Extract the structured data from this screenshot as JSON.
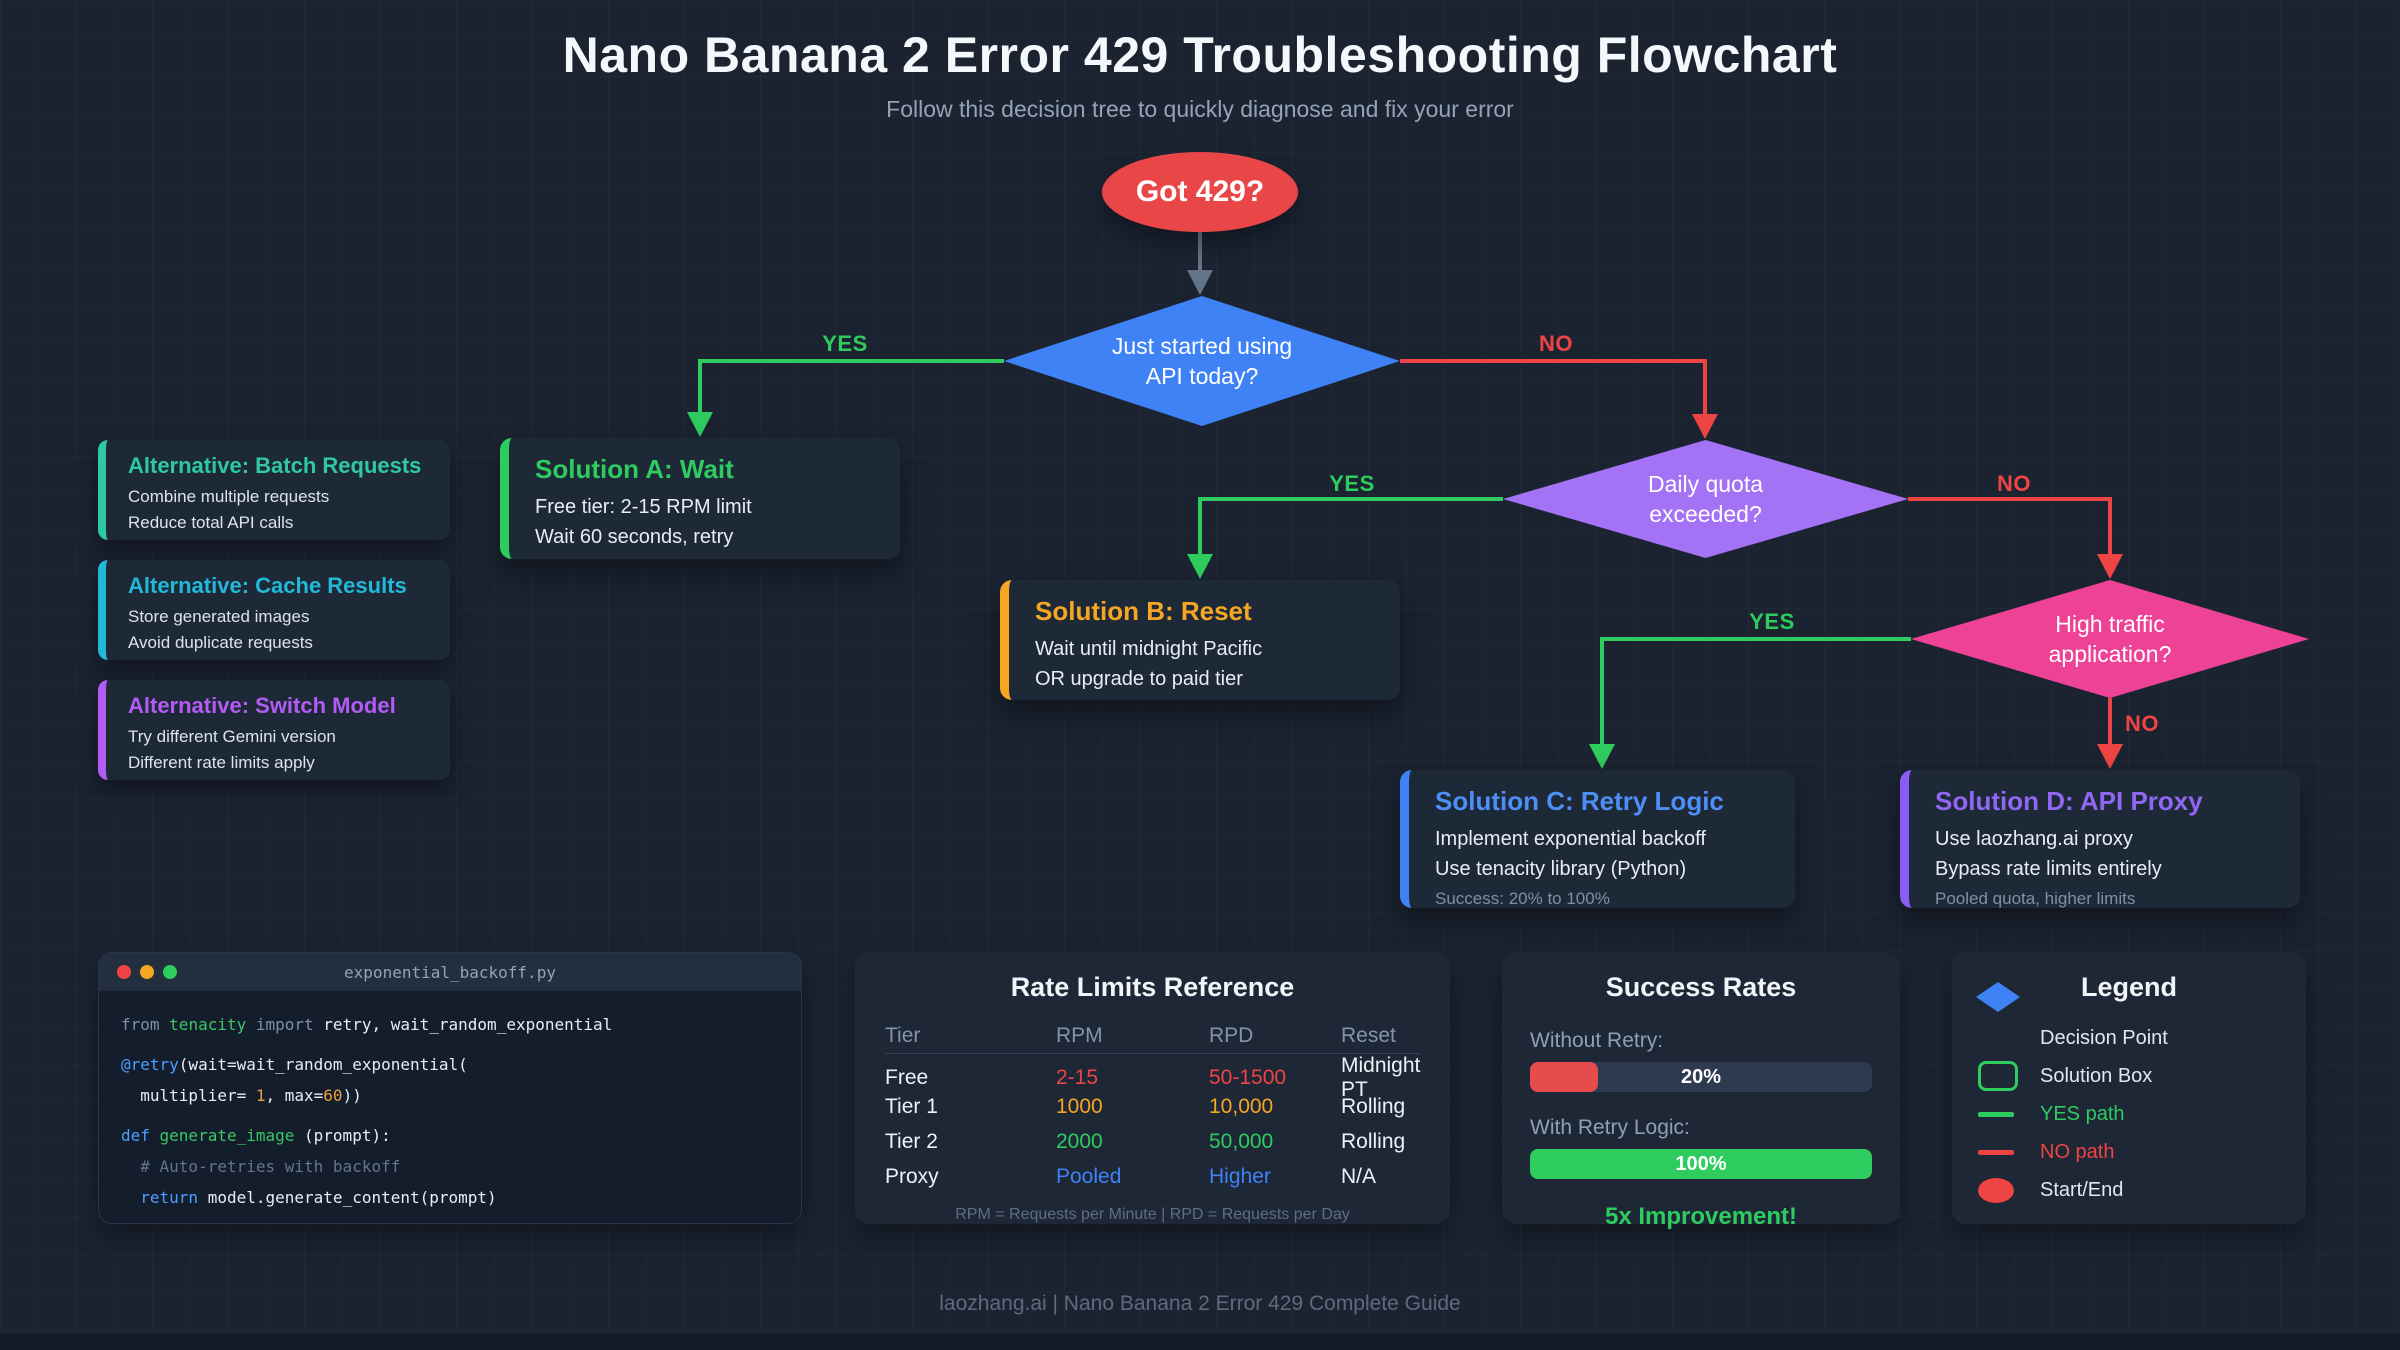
{
  "page": {
    "title": "Nano Banana 2 Error 429 Troubleshooting Flowchart",
    "subtitle": "Follow this decision tree to quickly diagnose and fix your error",
    "footer": "laozhang.ai | Nano Banana 2 Error 429 Complete Guide"
  },
  "flowchart": {
    "start_label": "Got 429?",
    "decisions": {
      "d1": {
        "line1": "Just started using",
        "line2": "API today?"
      },
      "d2": {
        "line1": "Daily quota",
        "line2": "exceeded?"
      },
      "d3": {
        "line1": "High traffic",
        "line2": "application?"
      }
    },
    "path_labels": {
      "yes1": "YES",
      "no1": "NO",
      "yes2": "YES",
      "no2": "NO",
      "yes3": "YES",
      "no3": "NO"
    },
    "solutions": {
      "a": {
        "title": "Solution A: Wait",
        "line1": "Free tier: 2-15 RPM limit",
        "line2": "Wait 60 seconds, retry"
      },
      "b": {
        "title": "Solution B: Reset",
        "line1": "Wait until midnight Pacific",
        "line2": "OR upgrade to paid tier"
      },
      "c": {
        "title": "Solution C: Retry Logic",
        "line1": "Implement exponential backoff",
        "line2": "Use tenacity library (Python)",
        "note": "Success: 20% to 100%"
      },
      "d": {
        "title": "Solution D: API Proxy",
        "line1": "Use laozhang.ai proxy",
        "line2": "Bypass rate limits entirely",
        "note": "Pooled quota, higher limits"
      }
    },
    "alternatives": [
      {
        "title": "Alternative: Batch Requests",
        "line1": "Combine multiple requests",
        "line2": "Reduce total API calls"
      },
      {
        "title": "Alternative: Cache Results",
        "line1": "Store generated images",
        "line2": "Avoid duplicate requests"
      },
      {
        "title": "Alternative: Switch Model",
        "line1": "Try different Gemini version",
        "line2": "Different rate limits apply"
      }
    ]
  },
  "code_window": {
    "filename": "exponential_backoff.py",
    "lines": [
      {
        "tokens": [
          {
            "t": "from ",
            "c": "kw2"
          },
          {
            "t": "tenacity",
            "c": "fn"
          },
          {
            "t": " import ",
            "c": "kw2"
          },
          {
            "t": "retry, wait_random_exponential",
            "c": "plain"
          }
        ]
      },
      {
        "gap": true
      },
      {
        "tokens": [
          {
            "t": "@retry",
            "c": "kw"
          },
          {
            "t": "(wait=wait_random_exponential(",
            "c": "plain"
          }
        ]
      },
      {
        "tokens": [
          {
            "t": "  multiplier= ",
            "c": "plain"
          },
          {
            "t": "1",
            "c": "num"
          },
          {
            "t": ", max=",
            "c": "plain"
          },
          {
            "t": "60",
            "c": "num"
          },
          {
            "t": "))",
            "c": "plain"
          }
        ]
      },
      {
        "gap": true
      },
      {
        "tokens": [
          {
            "t": "def ",
            "c": "kw"
          },
          {
            "t": "generate_image",
            "c": "fn"
          },
          {
            "t": " (prompt):",
            "c": "plain"
          }
        ]
      },
      {
        "tokens": [
          {
            "t": "  # Auto-retries with backoff",
            "c": "comment"
          }
        ]
      },
      {
        "tokens": [
          {
            "t": "  return ",
            "c": "kw"
          },
          {
            "t": "model.generate_content(prompt)",
            "c": "plain"
          }
        ]
      }
    ]
  },
  "rate_table": {
    "title": "Rate Limits Reference",
    "headers": [
      "Tier",
      "RPM",
      "RPD",
      "Reset"
    ],
    "rows": [
      {
        "tier": "Free",
        "rpm": "2-15",
        "rpd": "50-1500",
        "reset": "Midnight PT"
      },
      {
        "tier": "Tier 1",
        "rpm": "1000",
        "rpd": "10,000",
        "reset": "Rolling"
      },
      {
        "tier": "Tier 2",
        "rpm": "2000",
        "rpd": "50,000",
        "reset": "Rolling"
      },
      {
        "tier": "Proxy",
        "rpm": "Pooled",
        "rpd": "Higher",
        "reset": "N/A"
      }
    ],
    "footnote": "RPM = Requests per Minute | RPD = Requests per Day"
  },
  "success_rates": {
    "title": "Success Rates",
    "bars": [
      {
        "label": "Without Retry:",
        "value": "20%",
        "percent": 20,
        "color": "#e74c4c"
      },
      {
        "label": "With Retry Logic:",
        "value": "100%",
        "percent": 100,
        "color": "#2ecc5f"
      }
    ],
    "footer": "5x Improvement!"
  },
  "legend": {
    "title": "Legend",
    "items": [
      {
        "label": "Decision Point"
      },
      {
        "label": "Solution Box"
      },
      {
        "label": "YES path"
      },
      {
        "label": "NO path"
      },
      {
        "label": "Start/End"
      }
    ]
  },
  "colors": {
    "background": "#1b2331",
    "panel": "#1d2735",
    "yes_path": "#2ecc5f",
    "no_path": "#ef4444",
    "flow_arrow": "#64748b",
    "start_end": "#e94747",
    "decision_blue": "#3f82f6",
    "decision_purple": "#a472f5",
    "decision_pink": "#ed4296",
    "solution_a_green": "#2ecc5f",
    "solution_b_orange": "#f5a623",
    "solution_c_blue": "#3f82f6",
    "solution_d_purple": "#8b5cf6",
    "alt_teal": "#2ec9a2",
    "alt_cyan": "#22b8d8",
    "alt_purple": "#b35bf5"
  }
}
